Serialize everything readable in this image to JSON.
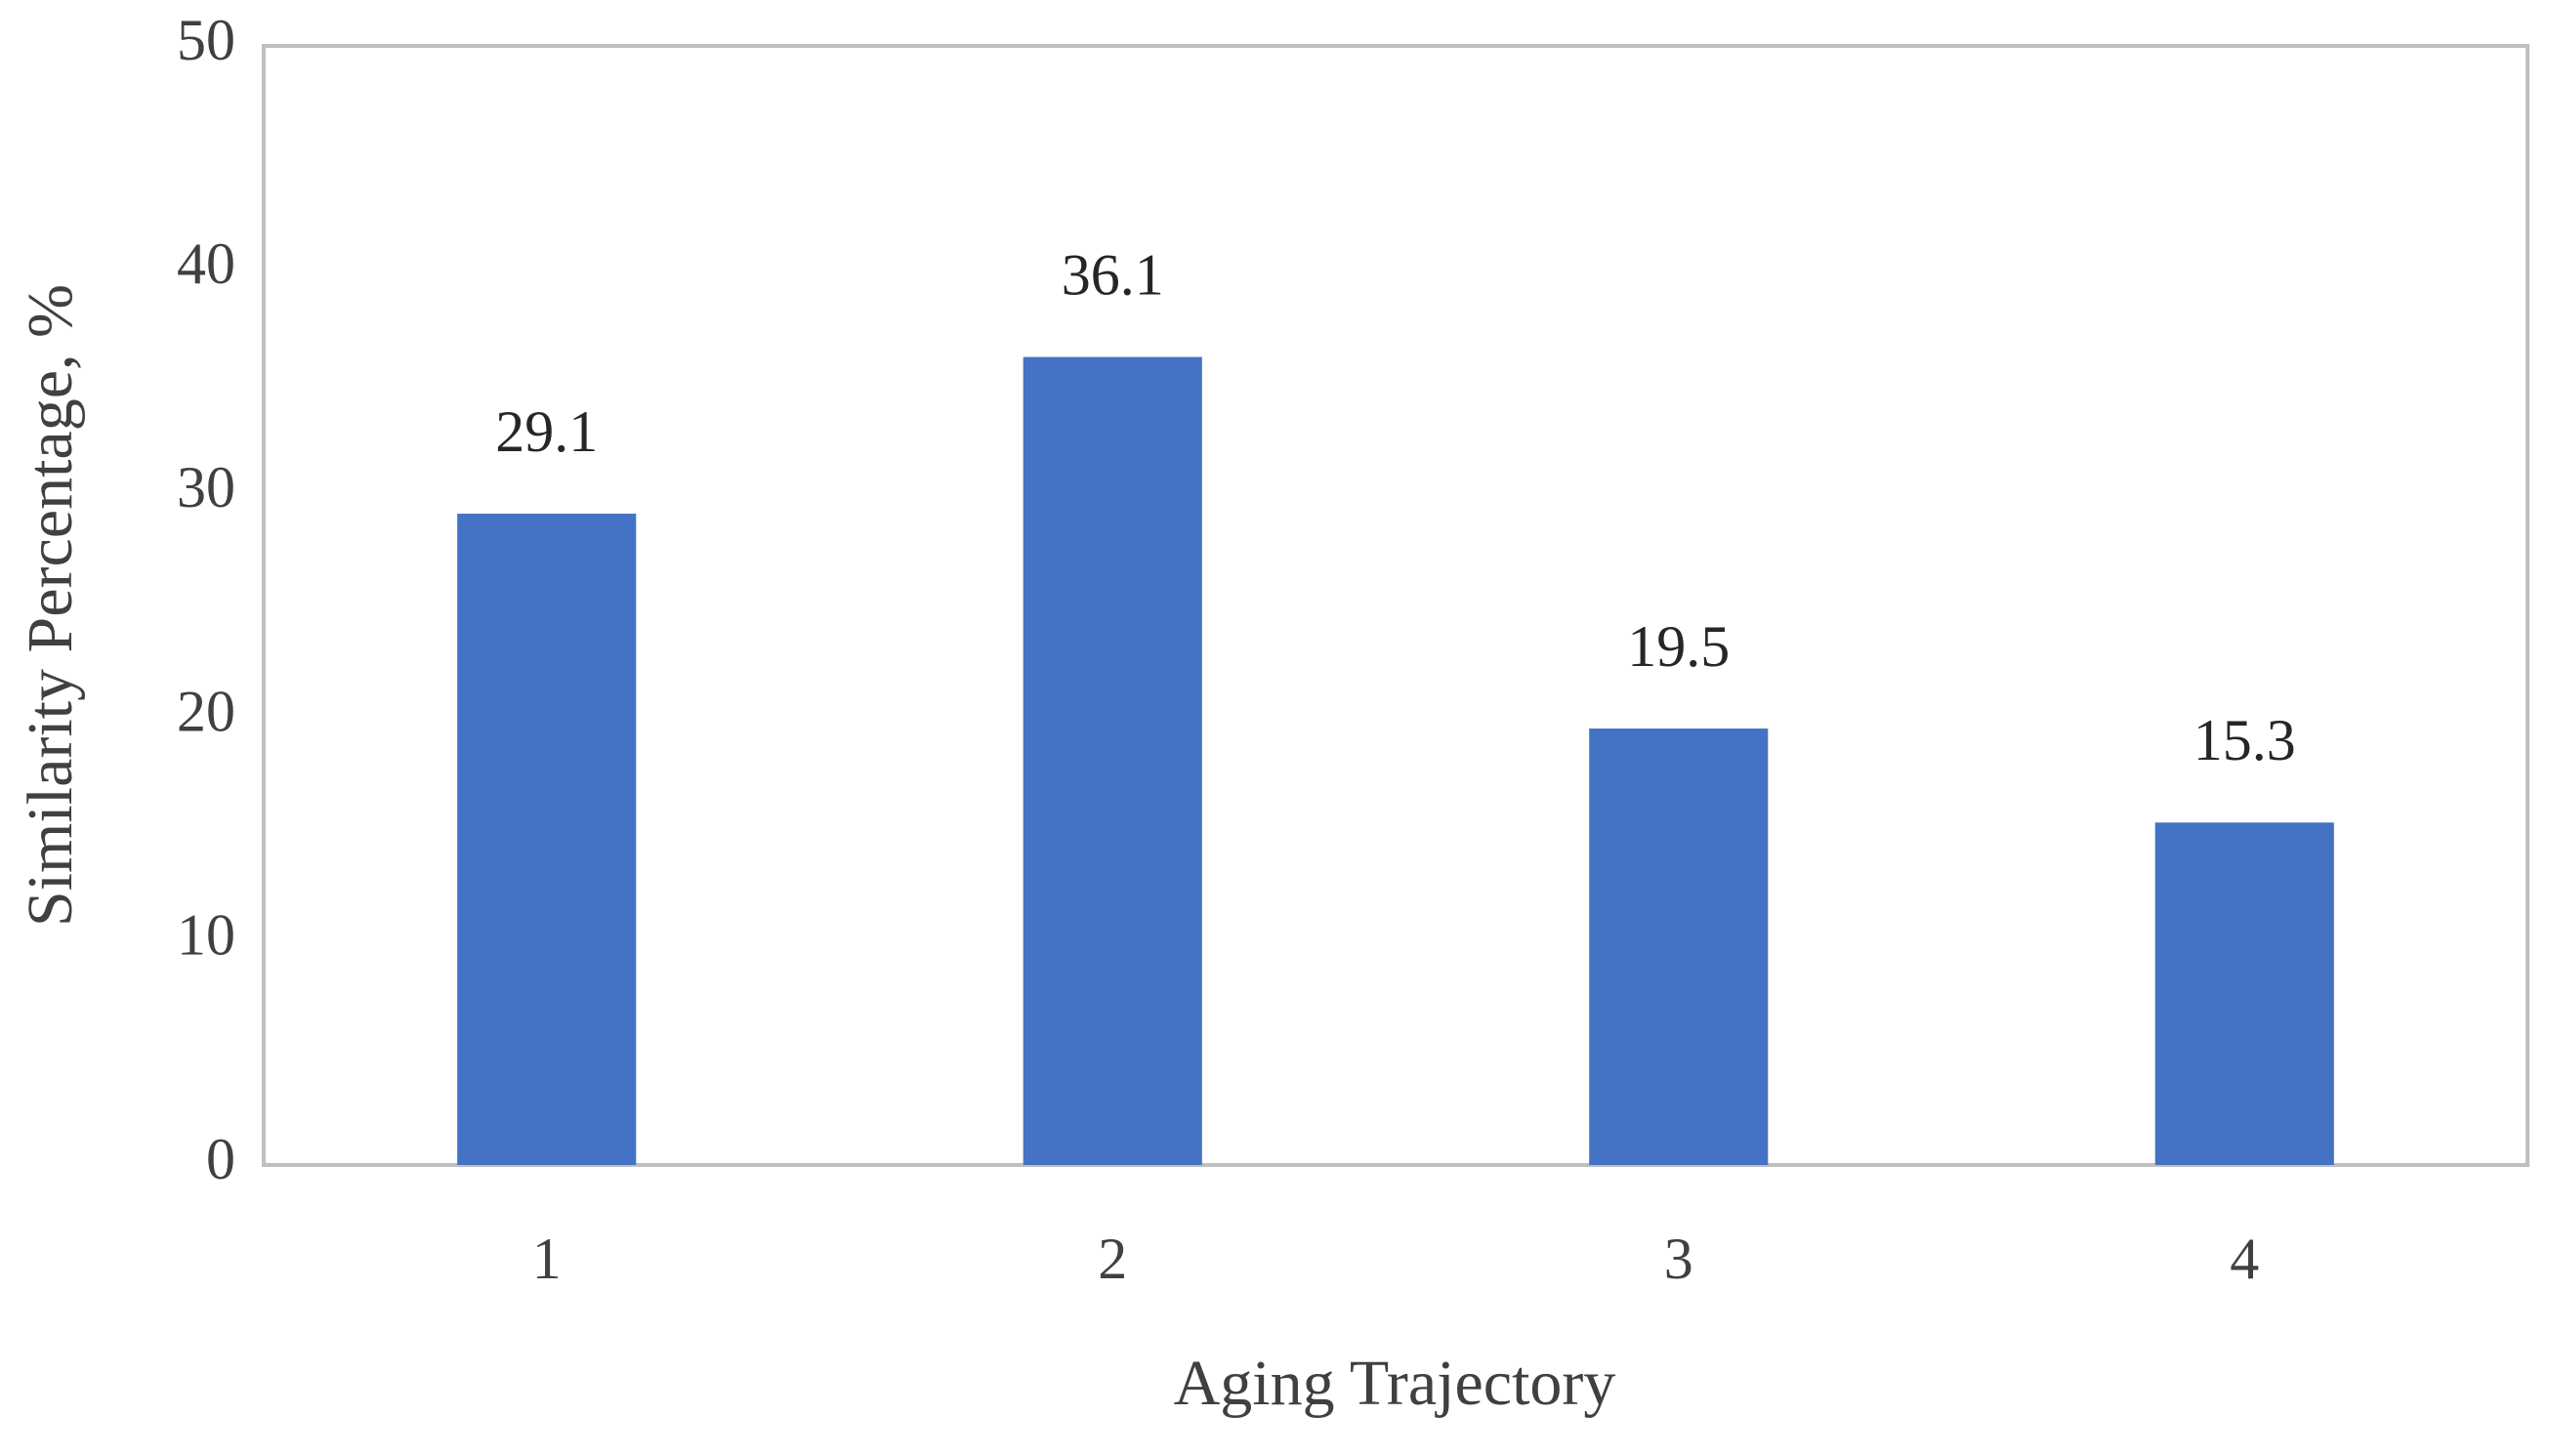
{
  "chart_data": {
    "type": "bar",
    "x_label": "Aging Trajectory",
    "y_label": "Similarity Percentage, %",
    "categories": [
      "1",
      "2",
      "3",
      "4"
    ],
    "values": [
      29.1,
      36.1,
      19.5,
      15.3
    ],
    "color": "#4472c4",
    "ylim": [
      0,
      50
    ],
    "yticks": [
      0,
      10,
      20,
      30,
      40,
      50
    ],
    "grid": false
  }
}
